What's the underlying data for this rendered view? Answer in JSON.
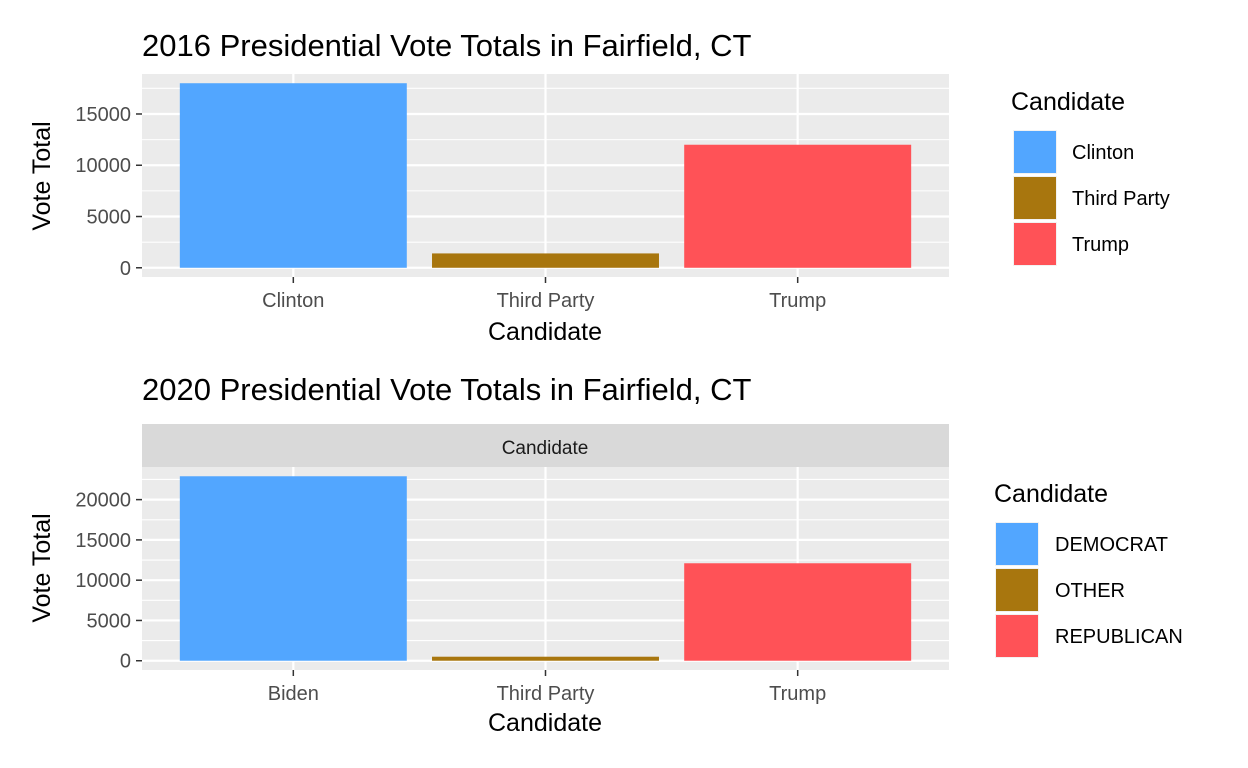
{
  "chart_data": [
    {
      "type": "bar",
      "title": "2016 Presidential Vote Totals in Fairfield, CT",
      "xlabel": "Candidate",
      "ylabel": "Vote Total",
      "categories": [
        "Clinton",
        "Third Party",
        "Trump"
      ],
      "values": [
        18000,
        1400,
        12000
      ],
      "colors": [
        "#52A6FF",
        "#A8760E",
        "#FF5257"
      ],
      "ylim": [
        -900,
        18900
      ],
      "yticks": [
        0,
        5000,
        10000,
        15000
      ],
      "ytick_labels": [
        "0",
        "5000",
        "10000",
        "15000"
      ],
      "grid": true,
      "legend": {
        "title": "Candidate",
        "position": "right",
        "entries": [
          {
            "label": "Clinton",
            "color": "#52A6FF"
          },
          {
            "label": "Third Party",
            "color": "#A8760E"
          },
          {
            "label": "Trump",
            "color": "#FF5257"
          }
        ]
      }
    },
    {
      "type": "bar",
      "title": "2020 Presidential Vote Totals in Fairfield, CT",
      "strip_label": "Candidate",
      "xlabel": "Candidate",
      "ylabel": "Vote Total",
      "categories": [
        "Biden",
        "Third Party",
        "Trump"
      ],
      "values": [
        22900,
        500,
        12100
      ],
      "colors": [
        "#52A6FF",
        "#A8760E",
        "#FF5257"
      ],
      "ylim": [
        -1150,
        24050
      ],
      "yticks": [
        0,
        5000,
        10000,
        15000,
        20000
      ],
      "ytick_labels": [
        "0",
        "5000",
        "10000",
        "15000",
        "20000"
      ],
      "grid": true,
      "legend": {
        "title": "Candidate",
        "position": "right",
        "entries": [
          {
            "label": "DEMOCRAT",
            "color": "#52A6FF"
          },
          {
            "label": "OTHER",
            "color": "#A8760E"
          },
          {
            "label": "REPUBLICAN",
            "color": "#FF5257"
          }
        ]
      }
    }
  ]
}
